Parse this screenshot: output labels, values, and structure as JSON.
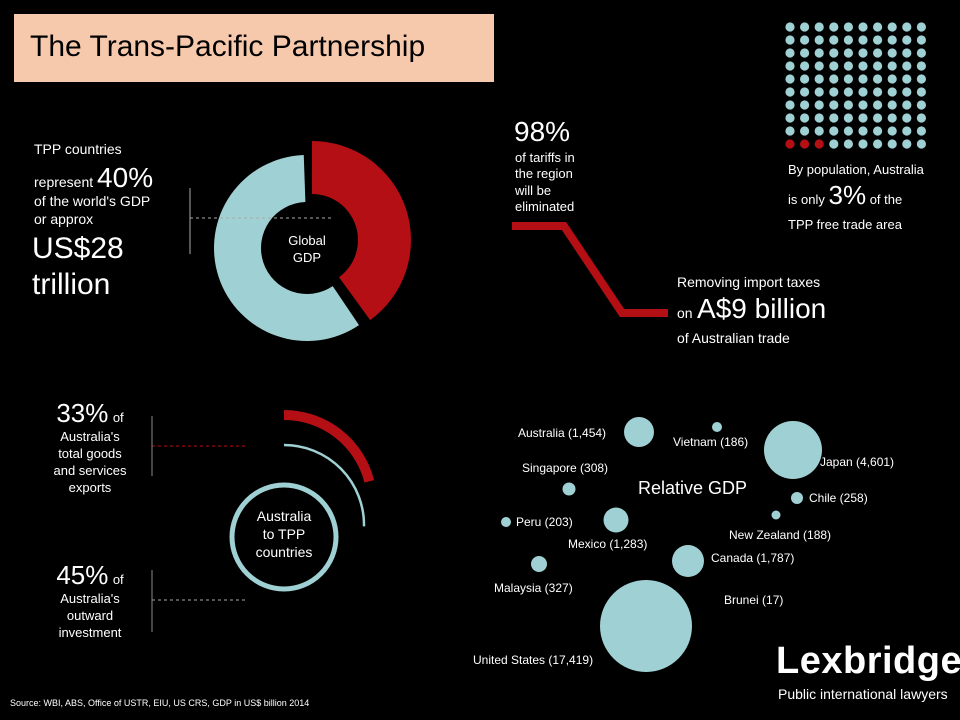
{
  "title": "The Trans-Pacific Partnership",
  "gdp_share": {
    "line1": "TPP countries",
    "line2_prefix": "represent",
    "percent": "40%",
    "line3": "of the world's GDP",
    "line4": "or approx",
    "amount_line1": "US$28",
    "amount_line2": "trillion",
    "donut_label_1": "Global",
    "donut_label_2": "GDP",
    "tpp_fraction": 0.4
  },
  "tariffs": {
    "percent": "98%",
    "text_1": "of tariffs in",
    "text_2": "the region",
    "text_3": "will be",
    "text_4": "eliminated"
  },
  "import_taxes": {
    "line1": "Removing import taxes",
    "prefix": "on",
    "amount": "A$9 billion",
    "line3": "of Australian trade"
  },
  "population": {
    "line1": "By population, Australia",
    "prefix": "is only",
    "percent": "3%",
    "suffix": "of the",
    "line3": "TPP free trade area",
    "dot_count": 100,
    "highlighted_dots": 3
  },
  "exports": {
    "percent": "33%",
    "of": "of",
    "line1": "Australia's",
    "line2": "total goods",
    "line3": "and services",
    "line4": "exports",
    "fraction": 0.33
  },
  "investment": {
    "percent": "45%",
    "of": "of",
    "line1": "Australia's",
    "line2": "outward",
    "line3": "investment",
    "fraction": 0.45
  },
  "center_circle": {
    "line1": "Australia",
    "line2": "to TPP",
    "line3": "countries"
  },
  "relative_gdp": {
    "title": "Relative GDP",
    "countries": [
      {
        "label": "Australia (1,454)"
      },
      {
        "label": "Vietnam (186)"
      },
      {
        "label": "Japan (4,601)"
      },
      {
        "label": "Singapore (308)"
      },
      {
        "label": "Chile (258)"
      },
      {
        "label": "Peru (203)"
      },
      {
        "label": "New Zealand (188)"
      },
      {
        "label": "Mexico (1,283)"
      },
      {
        "label": "Canada (1,787)"
      },
      {
        "label": "Malaysia (327)"
      },
      {
        "label": "Brunei (17)"
      },
      {
        "label": "United States (17,419)"
      }
    ]
  },
  "logo": {
    "name": "Lexbridge",
    "tagline": "Public international lawyers"
  },
  "source": "Source: WBI, ABS, Office of USTR, EIU, US CRS, GDP in US$ billion 2014",
  "colors": {
    "red": "#b30f14",
    "teal": "#9fd0d3",
    "title_bg": "#f7c9ac",
    "background": "#000000"
  }
}
